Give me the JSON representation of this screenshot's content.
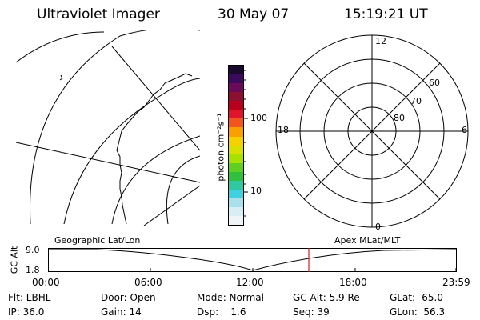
{
  "header": {
    "title": "Ultraviolet Imager",
    "date": "30 May 07",
    "time": "15:19:21 UT"
  },
  "colorbar": {
    "unit_label": "photon cm⁻²s⁻¹",
    "ticks": [
      "100",
      "10"
    ],
    "colors": [
      "#1a0a2e",
      "#3a0a5c",
      "#6a0a5a",
      "#8a1030",
      "#b8001e",
      "#e0142a",
      "#f2551e",
      "#f7a000",
      "#f7d000",
      "#d8e000",
      "#a8e000",
      "#60d020",
      "#30c040",
      "#30c8a0",
      "#40d0e0",
      "#a8e0ec",
      "#d8eef4",
      "#eef4f8"
    ]
  },
  "polar": {
    "mlt_labels": {
      "top": "12",
      "left": "18",
      "right": "6",
      "bottom": "0"
    },
    "lat_labels": [
      "60",
      "70",
      "80"
    ]
  },
  "timeline": {
    "axis_label": "GC Alt",
    "y_ticks": [
      "9.0",
      "1.8"
    ],
    "left_caption": "Geographic Lat/Lon",
    "right_caption": "Apex MLat/MLT",
    "x_ticks": [
      "00:00",
      "06:00",
      "12:00",
      "18:00",
      "23:59"
    ],
    "current_time_color": "#cc2222"
  },
  "info": {
    "row1": [
      {
        "id": "filter",
        "text": "Flt: LBHL"
      },
      {
        "id": "door",
        "text": "Door: Open"
      },
      {
        "id": "mode",
        "text": "Mode: Normal"
      },
      {
        "id": "gc-alt",
        "text": "GC Alt: 5.9 Re"
      },
      {
        "id": "glat",
        "text": "GLat: -65.0"
      }
    ],
    "row2": [
      {
        "id": "ip",
        "text": "IP: 36.0"
      },
      {
        "id": "gain",
        "text": "Gain: 14"
      },
      {
        "id": "dsp",
        "text": "Dsp:    1.6"
      },
      {
        "id": "seq",
        "text": "Seq: 39"
      },
      {
        "id": "glon",
        "text": "GLon:  56.3"
      }
    ]
  }
}
